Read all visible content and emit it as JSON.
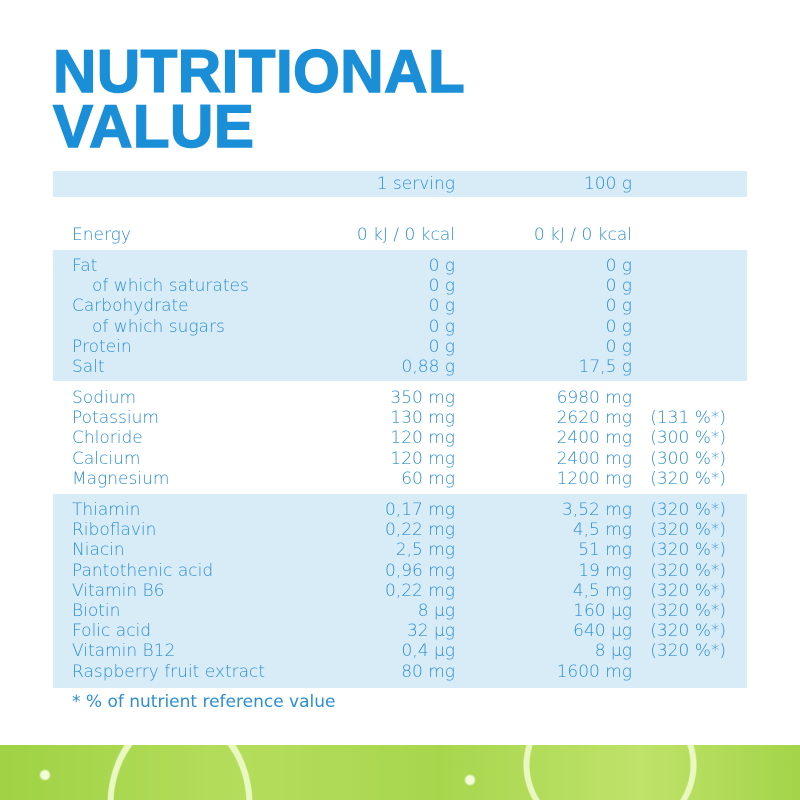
{
  "title": [
    "NUTRITIONAL",
    "VALUE"
  ],
  "header": {
    "serving": "1 serving",
    "per100": "100 g"
  },
  "energy": {
    "label": "Energy",
    "serving": "0 kJ / 0 kcal",
    "per100": "0 kJ / 0 kcal"
  },
  "macros": [
    {
      "label": "Fat",
      "serving": "0 g",
      "per100": "0 g",
      "indent": false
    },
    {
      "label": "of which saturates",
      "serving": "0 g",
      "per100": "0 g",
      "indent": true
    },
    {
      "label": "Carbohydrate",
      "serving": "0 g",
      "per100": "0 g",
      "indent": false
    },
    {
      "label": "of which sugars",
      "serving": "0 g",
      "per100": "0 g",
      "indent": true
    },
    {
      "label": "Protein",
      "serving": "0 g",
      "per100": "0 g",
      "indent": false
    },
    {
      "label": "Salt",
      "serving": "0,88 g",
      "per100": "17,5 g",
      "indent": false
    }
  ],
  "minerals": [
    {
      "label": "Sodium",
      "serving": "350 mg",
      "per100": "6980 mg",
      "nrv": ""
    },
    {
      "label": "Potassium",
      "serving": "130 mg",
      "per100": "2620 mg",
      "nrv": "(131 %*)"
    },
    {
      "label": "Chloride",
      "serving": "120 mg",
      "per100": "2400 mg",
      "nrv": "(300 %*)"
    },
    {
      "label": "Calcium",
      "serving": "120 mg",
      "per100": "2400 mg",
      "nrv": "(300 %*)"
    },
    {
      "label": "Magnesium",
      "serving": "60 mg",
      "per100": "1200 mg",
      "nrv": "(320 %*)"
    }
  ],
  "vitamins": [
    {
      "label": "Thiamin",
      "serving": "0,17 mg",
      "per100": "3,52 mg",
      "nrv": "(320 %*)"
    },
    {
      "label": "Riboflavin",
      "serving": "0,22 mg",
      "per100": "4,5 mg",
      "nrv": "(320 %*)"
    },
    {
      "label": "Niacin",
      "serving": "2,5 mg",
      "per100": "51 mg",
      "nrv": "(320 %*)"
    },
    {
      "label": "Pantothenic acid",
      "serving": "0,96 mg",
      "per100": "19 mg",
      "nrv": "(320 %*)"
    },
    {
      "label": "Vitamin B6",
      "serving": "0,22 mg",
      "per100": "4,5 mg",
      "nrv": "(320 %*)"
    },
    {
      "label": "Biotin",
      "serving": "8 µg",
      "per100": "160 µg",
      "nrv": "(320 %*)"
    },
    {
      "label": "Folic acid",
      "serving": "32 µg",
      "per100": "640 µg",
      "nrv": "(320 %*)"
    },
    {
      "label": "Vitamin B12",
      "serving": "0,4 µg",
      "per100": "8 µg",
      "nrv": "(320 %*)"
    },
    {
      "label": "Raspberry fruit extract",
      "serving": "80 mg",
      "per100": "1600 mg",
      "nrv": ""
    }
  ],
  "footnote": "* % of nutrient reference value",
  "colors": {
    "accent": "#1a8fd8",
    "band": "#d8ecf8"
  }
}
